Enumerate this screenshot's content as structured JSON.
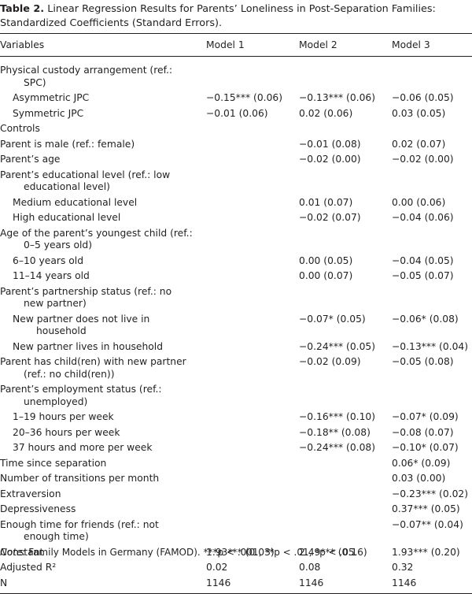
{
  "header": {
    "label": "Table 2.",
    "title": "Linear Regression Results for Parents’ Loneliness in Post-Separation Families: Standardized Coefficients (Standard Errors)."
  },
  "table": {
    "columns": [
      "Variables",
      "Model 1",
      "Model 2",
      "Model 3"
    ],
    "rows": [
      {
        "label": "Physical custody arrangement (ref.: SPC)",
        "rows": [
          {
            "label": "Asymmetric JPC",
            "cells": [
              "−0.15*** (0.06)",
              "−0.13*** (0.06)",
              "−0.06 (0.05)"
            ]
          },
          {
            "label": "Symmetric JPC",
            "cells": [
              "−0.01 (0.06)",
              "0.02 (0.06)",
              "0.03 (0.05)"
            ]
          }
        ]
      },
      {
        "label": "Controls"
      },
      {
        "label": "Parent is male (ref.: female)",
        "cells": [
          null,
          "−0.01 (0.08)",
          "0.02 (0.07)"
        ]
      },
      {
        "label": "Parent’s age",
        "cells": [
          null,
          "−0.02 (0.00)",
          "−0.02 (0.00)"
        ]
      },
      {
        "label": "Parent’s educational level (ref.: low educational level)",
        "rows": [
          {
            "label": "Medium educational level",
            "cells": [
              null,
              "0.01 (0.07)",
              "0.00 (0.06)"
            ]
          },
          {
            "label": "High educational level",
            "cells": [
              null,
              "−0.02 (0.07)",
              "−0.04 (0.06)"
            ]
          }
        ]
      },
      {
        "label": "Age of the parent’s youngest child (ref.: 0–5 years old)",
        "rows": [
          {
            "label": "6–10 years old",
            "cells": [
              null,
              "0.00 (0.05)",
              "−0.04 (0.05)"
            ]
          },
          {
            "label": "11–14 years old",
            "cells": [
              null,
              "0.00 (0.07)",
              "−0.05 (0.07)"
            ]
          }
        ]
      },
      {
        "label": "Parent’s partnership status (ref.: no new partner)",
        "rows": [
          {
            "label": "New partner does not live in household",
            "cells": [
              null,
              "−0.07* (0.05)",
              "−0.06* (0.08)"
            ]
          },
          {
            "label": "New partner lives in household",
            "cells": [
              null,
              "−0.24*** (0.05)",
              "−0.13*** (0.04)"
            ]
          }
        ]
      },
      {
        "label": "Parent has child(ren) with new partner (ref.: no child(ren))",
        "cells": [
          null,
          "−0.02 (0.09)",
          "−0.05 (0.08)"
        ]
      },
      {
        "label": "Parent’s employment status (ref.: unemployed)",
        "rows": [
          {
            "label": "1–19 hours per week",
            "cells": [
              null,
              "−0.16*** (0.10)",
              "−0.07* (0.09)"
            ]
          },
          {
            "label": "20–36 hours per week",
            "cells": [
              null,
              "−0.18** (0.08)",
              "−0.08 (0.07)"
            ]
          },
          {
            "label": "37 hours and more per week",
            "cells": [
              null,
              "−0.24*** (0.08)",
              "−0.10* (0.07)"
            ]
          }
        ]
      },
      {
        "label": "Time since separation",
        "cells": [
          null,
          null,
          "0.06* (0.09)"
        ]
      },
      {
        "label": "Number of transitions per month",
        "cells": [
          null,
          null,
          "0.03 (0.00)"
        ]
      },
      {
        "label": "Extraversion",
        "cells": [
          null,
          null,
          "−0.23*** (0.02)"
        ]
      },
      {
        "label": "Depressiveness",
        "cells": [
          null,
          null,
          "0.37*** (0.05)"
        ]
      },
      {
        "label": "Enough time for friends (ref.: not enough time)",
        "cells": [
          null,
          null,
          "−0.07** (0.04)"
        ]
      },
      {
        "label": "Constant",
        "cells": [
          "1.93*** (0.03)",
          "2.49*** (0.16)",
          "1.93*** (0.20)"
        ]
      },
      {
        "label": "Adjusted R²",
        "cells": [
          "0.02",
          "0.08",
          "0.32"
        ]
      },
      {
        "label": "N",
        "cells": [
          "1146",
          "1146",
          "1146"
        ]
      }
    ]
  },
  "note": {
    "label": "Note",
    "text": ": Family Models in Germany (FAMOD). ***p < .001, **p < .01, *p < .05."
  }
}
